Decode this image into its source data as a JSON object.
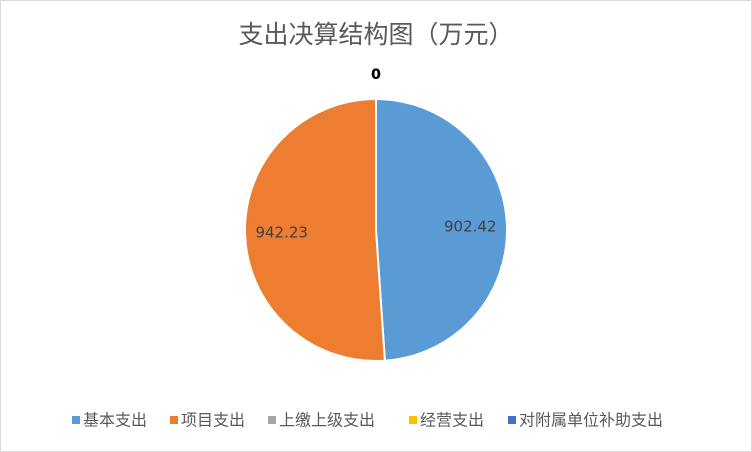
{
  "chart_data": {
    "type": "pie",
    "title": "支出决算结构图（万元）",
    "categories": [
      "基本支出",
      "项目支出",
      "上缴上级支出",
      "经营支出",
      "对附属单位补助支出"
    ],
    "values": [
      902.42,
      942.23,
      0,
      0,
      0
    ],
    "colors": [
      "#5b9bd5",
      "#ed7d31",
      "#a5a5a5",
      "#ffc000",
      "#4472c4"
    ],
    "legend": "bottom"
  }
}
